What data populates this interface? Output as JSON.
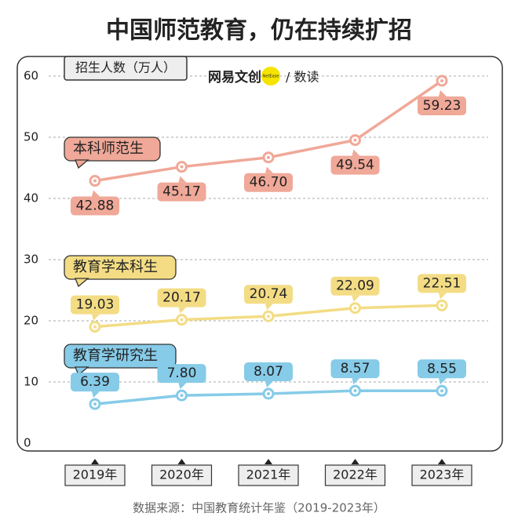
{
  "chart_data": {
    "type": "line",
    "title": "中国师范教育，仍在持续扩招",
    "y_label": "招生人数（万人）",
    "logo": "网易文创",
    "logo_badge": "NetEase",
    "logo_sub": "/ 数读",
    "source": "数据来源：中国教育统计年鉴（2019-2023年）",
    "categories": [
      "2019年",
      "2020年",
      "2021年",
      "2022年",
      "2023年"
    ],
    "series": [
      {
        "name": "本科师范生",
        "color": "#f0a898",
        "values": [
          42.88,
          45.17,
          46.7,
          49.54,
          59.23
        ],
        "value_labels": [
          "42.88",
          "45.17",
          "46.70",
          "49.54",
          "59.23"
        ]
      },
      {
        "name": "教育学本科生",
        "color": "#f3dc84",
        "values": [
          19.03,
          20.17,
          20.74,
          22.09,
          22.51
        ],
        "value_labels": [
          "19.03",
          "20.17",
          "20.74",
          "22.09",
          "22.51"
        ]
      },
      {
        "name": "教育学研究生",
        "color": "#86cbe8",
        "values": [
          6.39,
          7.8,
          8.07,
          8.57,
          8.55
        ],
        "value_labels": [
          "6.39",
          "7.80",
          "8.07",
          "8.57",
          "8.55"
        ]
      }
    ],
    "ylim": [
      0,
      60
    ],
    "yticks": [
      0,
      10,
      20,
      30,
      40,
      50,
      60
    ],
    "grid": true
  }
}
